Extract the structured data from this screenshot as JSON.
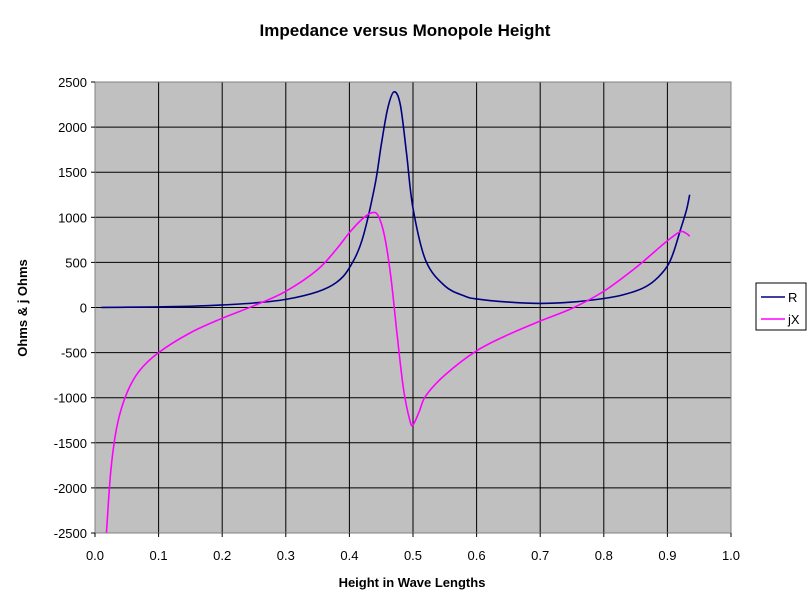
{
  "chart_data": {
    "type": "line",
    "title": "Impedance versus Monopole Height",
    "xlabel": "Height in Wave Lengths",
    "ylabel": "Ohms & j Ohms",
    "xlim": [
      0.0,
      1.0
    ],
    "ylim": [
      -2500,
      2500
    ],
    "xticks": [
      0.0,
      0.1,
      0.2,
      0.3,
      0.4,
      0.5,
      0.6,
      0.7,
      0.8,
      0.9,
      1.0
    ],
    "xtick_labels": [
      "0.0",
      "0.1",
      "0.2",
      "0.3",
      "0.4",
      "0.5",
      "0.6",
      "0.7",
      "0.8",
      "0.9",
      "1.0"
    ],
    "yticks": [
      -2500,
      -2000,
      -1500,
      -1000,
      -500,
      0,
      500,
      1000,
      1500,
      2000,
      2500
    ],
    "ytick_labels": [
      "-2500",
      "-2000",
      "-1500",
      "-1000",
      "-500",
      "0",
      "500",
      "1000",
      "1500",
      "2000",
      "2500"
    ],
    "grid": true,
    "plot_background": "#c0c0c0",
    "legend_position": "right",
    "series": [
      {
        "name": "R",
        "color": "#000080",
        "x": [
          0.01,
          0.05,
          0.1,
          0.15,
          0.2,
          0.25,
          0.3,
          0.35,
          0.38,
          0.4,
          0.42,
          0.44,
          0.45,
          0.46,
          0.47,
          0.48,
          0.49,
          0.5,
          0.52,
          0.55,
          0.58,
          0.6,
          0.65,
          0.7,
          0.75,
          0.8,
          0.83,
          0.86,
          0.88,
          0.9,
          0.91,
          0.92,
          0.93,
          0.935
        ],
        "y": [
          1,
          3,
          7,
          14,
          28,
          50,
          90,
          175,
          280,
          440,
          750,
          1350,
          1800,
          2200,
          2390,
          2250,
          1700,
          1100,
          520,
          240,
          130,
          95,
          60,
          45,
          60,
          100,
          140,
          210,
          300,
          460,
          620,
          850,
          1080,
          1250
        ]
      },
      {
        "name": "jX",
        "color": "#ff00ff",
        "x": [
          0.018,
          0.025,
          0.035,
          0.05,
          0.07,
          0.1,
          0.15,
          0.2,
          0.25,
          0.3,
          0.35,
          0.38,
          0.4,
          0.42,
          0.435,
          0.445,
          0.455,
          0.465,
          0.475,
          0.485,
          0.495,
          0.5,
          0.51,
          0.52,
          0.55,
          0.6,
          0.65,
          0.7,
          0.75,
          0.8,
          0.85,
          0.88,
          0.9,
          0.92,
          0.93,
          0.935
        ],
        "y": [
          -2500,
          -1800,
          -1300,
          -950,
          -700,
          -500,
          -280,
          -120,
          20,
          180,
          420,
          650,
          830,
          980,
          1050,
          1020,
          800,
          350,
          -300,
          -900,
          -1250,
          -1300,
          -1150,
          -980,
          -750,
          -480,
          -300,
          -150,
          -10,
          180,
          440,
          620,
          740,
          840,
          820,
          790
        ]
      }
    ]
  }
}
